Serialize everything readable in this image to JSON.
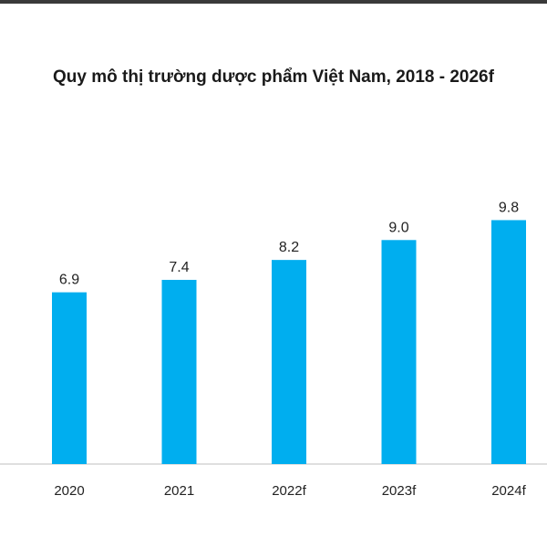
{
  "chart_data": {
    "type": "bar",
    "title": "Quy mô thị trường dược phẩm Việt Nam, 2018 - 2026f",
    "xlabel": "",
    "ylabel": "",
    "categories": [
      "2020",
      "2021",
      "2022f",
      "2023f",
      "2024f"
    ],
    "values": [
      6.9,
      7.4,
      8.2,
      9.0,
      9.8
    ],
    "value_labels": [
      "6.9",
      "7.4",
      "8.2",
      "9.0",
      "9.8"
    ],
    "grid": false,
    "colors": {
      "bar": "#00aeef"
    }
  }
}
